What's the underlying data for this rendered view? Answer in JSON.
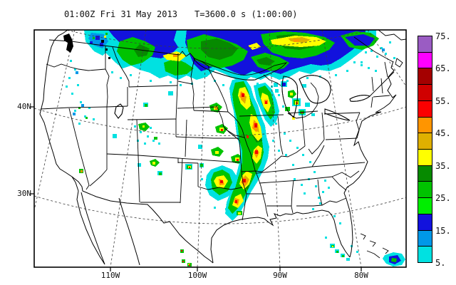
{
  "title": {
    "timestamp": "01:00Z Fri 31 May 2013",
    "forecast_time": "T=3600.0 s (1:00:00)"
  },
  "axes": {
    "lat_ticks": [
      {
        "label": "40N"
      },
      {
        "label": "30N"
      }
    ],
    "lon_ticks": [
      {
        "label": "110W"
      },
      {
        "label": "100W"
      },
      {
        "label": "90W"
      },
      {
        "label": "80W"
      }
    ]
  },
  "colorbar": {
    "tick_labels_top_down": [
      "75.",
      "65.",
      "55.",
      "45.",
      "35.",
      "25.",
      "15.",
      "5."
    ],
    "levels_bottom_up": [
      {
        "min_dbz": 5,
        "color": "#00E1E1"
      },
      {
        "min_dbz": 10,
        "color": "#0098E8"
      },
      {
        "min_dbz": 15,
        "color": "#1212DD"
      },
      {
        "min_dbz": 20,
        "color": "#00EE00"
      },
      {
        "min_dbz": 25,
        "color": "#00C300"
      },
      {
        "min_dbz": 30,
        "color": "#068A00"
      },
      {
        "min_dbz": 35,
        "color": "#FFFF00"
      },
      {
        "min_dbz": 40,
        "color": "#DFB000"
      },
      {
        "min_dbz": 45,
        "color": "#FF9500"
      },
      {
        "min_dbz": 50,
        "color": "#FB0000"
      },
      {
        "min_dbz": 55,
        "color": "#D00000"
      },
      {
        "min_dbz": 60,
        "color": "#A40000"
      },
      {
        "min_dbz": 65,
        "color": "#FF00FF"
      },
      {
        "min_dbz": 70,
        "color": "#9A5CC3"
      }
    ]
  },
  "style": {
    "background": "#FFFFFF",
    "line_color": "#000000",
    "grid_color": "#3C3C3C",
    "text_color": "#111111"
  }
}
